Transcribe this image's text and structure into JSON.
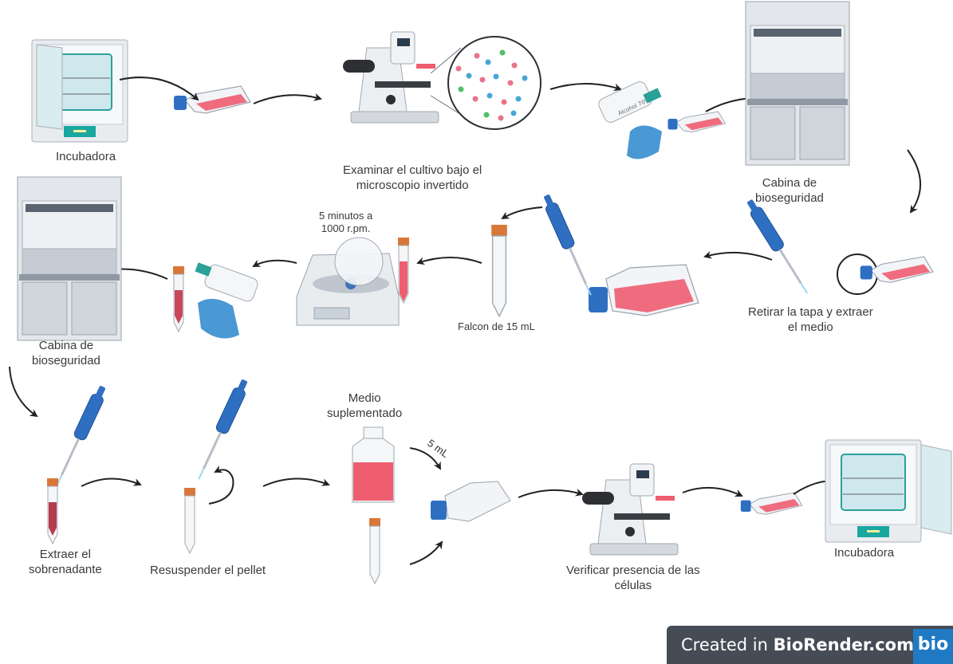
{
  "labels": {
    "incubator_1": "Incubadora",
    "microscope_1": [
      "Examinar el cultivo bajo el",
      "microscopio invertido"
    ],
    "cabinet_1": [
      "Cabina de",
      "bioseguridad"
    ],
    "remove_medium": [
      "Retirar la tapa y extraer",
      "el medio"
    ],
    "falcon": "Falcon de 15 mL",
    "centrifuge": [
      "5 minutos a",
      "1000 r.pm."
    ],
    "cabinet_2": [
      "Cabina de",
      "bioseguridad"
    ],
    "supernatant": [
      "Extraer el",
      "sobrenadante"
    ],
    "resuspend": "Resuspender el pellet",
    "medium": [
      "Medio",
      "suplementado"
    ],
    "volume": "5 mL",
    "verify": [
      "Verificar presencia de las",
      "células"
    ],
    "incubator_2": "Incubadora",
    "spray_text": "Alcohol 70%"
  },
  "badge": {
    "prefix": "Created in ",
    "brand": "BioRender.com",
    "logo": "bio"
  },
  "colors": {
    "arrow": "#222222",
    "medium_pink": "#ee5d70",
    "cap_blue": "#2f6fc2",
    "cap_orange": "#d9773a",
    "glove_blue": "#4a98d4",
    "cabinet_gray": "#d5dae1",
    "badge_bg": "#454c55",
    "logo_bg": "#1f7ac3"
  }
}
